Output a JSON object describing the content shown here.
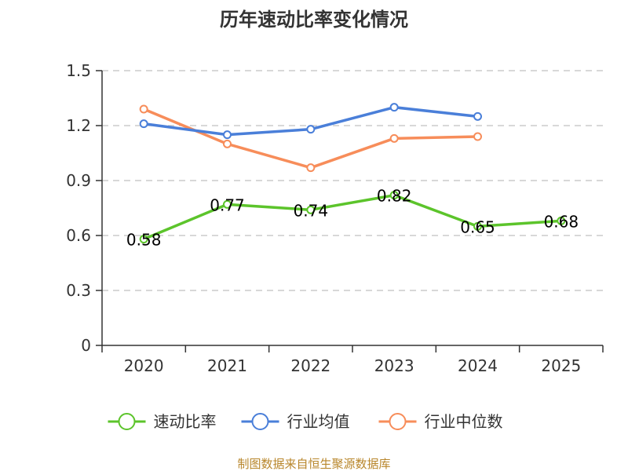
{
  "chart_data": {
    "type": "line",
    "title": "历年速动比率变化情况",
    "categories": [
      "2020",
      "2021",
      "2022",
      "2023",
      "2024",
      "2025"
    ],
    "ylim": [
      0,
      1.5
    ],
    "yticks": [
      0,
      0.3,
      0.6,
      0.9,
      1.2,
      1.5
    ],
    "ytick_labels": [
      "0",
      "0.3",
      "0.6",
      "0.9",
      "1.2",
      "1.5"
    ],
    "grid": true,
    "legend_position": "bottom",
    "series": [
      {
        "name": "速动比率",
        "color": "#5cc42b",
        "values": [
          0.58,
          0.77,
          0.74,
          0.82,
          0.65,
          0.68
        ],
        "labels": [
          "0.58",
          "0.77",
          "0.74",
          "0.82",
          "0.65",
          "0.68"
        ],
        "show_labels": true
      },
      {
        "name": "行业均值",
        "color": "#4a7fd9",
        "values": [
          1.21,
          1.15,
          1.18,
          1.3,
          1.25,
          null
        ],
        "show_labels": false
      },
      {
        "name": "行业中位数",
        "color": "#f78d5a",
        "values": [
          1.29,
          1.1,
          0.97,
          1.13,
          1.14,
          null
        ],
        "show_labels": false
      }
    ],
    "source": "制图数据来自恒生聚源数据库"
  }
}
